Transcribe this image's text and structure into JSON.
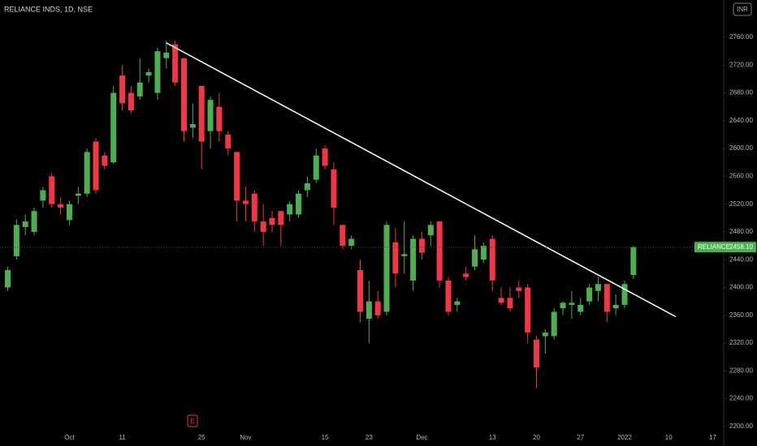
{
  "chart_data": {
    "type": "candlestick",
    "title": "RELIANCE INDS, 1D, NSE",
    "currency": "INR",
    "event_marker": "E",
    "up_color": "#4caf50",
    "down_color": "#f23645",
    "categories": [
      null,
      null,
      null,
      null,
      null,
      null,
      null,
      "Oct",
      null,
      null,
      null,
      null,
      null,
      "11",
      null,
      null,
      null,
      null,
      null,
      null,
      null,
      null,
      "25",
      null,
      null,
      null,
      null,
      "Nov",
      null,
      null,
      null,
      null,
      null,
      null,
      null,
      null,
      "15",
      null,
      null,
      null,
      null,
      "23",
      null,
      null,
      null,
      null,
      null,
      "Dec",
      null,
      null,
      null,
      null,
      null,
      null,
      null,
      "13",
      null,
      null,
      null,
      null,
      "20",
      null,
      null,
      null,
      null,
      "27",
      null,
      null,
      null,
      null,
      "2022",
      null,
      null,
      null,
      null,
      "10",
      null,
      null,
      null,
      null,
      "17"
    ],
    "open": [
      2400,
      2445,
      2487,
      2480,
      2525,
      2560,
      2520,
      2497,
      2532,
      2535,
      2610,
      2590,
      2580,
      2705,
      2680,
      2675,
      2705,
      2680,
      2730,
      2750,
      2730,
      2630,
      2690,
      2625,
      2660,
      2620,
      2595,
      2525,
      2535,
      2495,
      2500,
      2510,
      2505,
      2505,
      2540,
      2555,
      2600,
      2570,
      2490,
      2460,
      2425,
      2355,
      2380,
      2365,
      2465,
      2445,
      2410,
      2470,
      2475,
      2495,
      2410,
      2375,
      2420,
      2430,
      2440,
      2470,
      2385,
      2385,
      2400,
      2400,
      2325,
      2330,
      2330,
      2370,
      2375,
      2365,
      2380,
      2395,
      2405,
      2370,
      2375,
      2418,
      null,
      null,
      null,
      null,
      null,
      null,
      null,
      null,
      null
    ],
    "high": [
      2430,
      2498,
      2505,
      2515,
      2545,
      2565,
      2530,
      2525,
      2545,
      2600,
      2615,
      2595,
      2690,
      2720,
      2690,
      2730,
      2715,
      2745,
      2755,
      2755,
      2730,
      2665,
      2690,
      2675,
      2680,
      2625,
      2595,
      2545,
      2540,
      2520,
      2510,
      2510,
      2525,
      2540,
      2560,
      2600,
      2605,
      2580,
      2490,
      2475,
      2440,
      2410,
      2395,
      2495,
      2485,
      2495,
      2475,
      2480,
      2495,
      2495,
      2415,
      2385,
      2430,
      2475,
      2465,
      2475,
      2400,
      2400,
      2410,
      2405,
      2330,
      2340,
      2370,
      2380,
      2395,
      2385,
      2405,
      2415,
      2405,
      2390,
      2410,
      2460,
      null,
      null,
      null,
      null,
      null,
      null,
      null,
      null,
      null
    ],
    "low": [
      2395,
      2440,
      2475,
      2475,
      2515,
      2515,
      2505,
      2490,
      2520,
      2530,
      2535,
      2570,
      2578,
      2655,
      2650,
      2670,
      2695,
      2670,
      2715,
      2690,
      2610,
      2615,
      2570,
      2600,
      2610,
      2590,
      2495,
      2495,
      2480,
      2460,
      2480,
      2460,
      2495,
      2500,
      2530,
      2550,
      2570,
      2490,
      2455,
      2455,
      2350,
      2320,
      2355,
      2360,
      2400,
      2420,
      2395,
      2440,
      2460,
      2400,
      2360,
      2365,
      2410,
      2425,
      2435,
      2395,
      2375,
      2365,
      2385,
      2320,
      2255,
      2305,
      2325,
      2360,
      2355,
      2360,
      2375,
      2380,
      2350,
      2360,
      2370,
      2412,
      null,
      null,
      null,
      null,
      null,
      null,
      null,
      null,
      null
    ],
    "close": [
      2425,
      2490,
      2495,
      2510,
      2540,
      2520,
      2515,
      2520,
      2535,
      2595,
      2540,
      2575,
      2680,
      2665,
      2655,
      2695,
      2710,
      2740,
      2738,
      2695,
      2625,
      2635,
      2610,
      2670,
      2625,
      2600,
      2525,
      2520,
      2495,
      2480,
      2490,
      2490,
      2520,
      2535,
      2550,
      2590,
      2575,
      2515,
      2460,
      2470,
      2365,
      2380,
      2360,
      2490,
      2420,
      2448,
      2470,
      2450,
      2490,
      2410,
      2365,
      2380,
      2415,
      2455,
      2460,
      2410,
      2378,
      2370,
      2395,
      2335,
      2285,
      2335,
      2365,
      2378,
      2378,
      2375,
      2400,
      2405,
      2365,
      2375,
      2405,
      2458.1,
      null,
      null,
      null,
      null,
      null,
      null,
      null,
      null,
      null
    ],
    "ylim": [
      2188.2,
      2813.7
    ],
    "yticks": [
      {
        "value": 2200,
        "label": "2200.00"
      },
      {
        "value": 2240,
        "label": "2240.00"
      },
      {
        "value": 2280,
        "label": "2280.00"
      },
      {
        "value": 2320,
        "label": "2320.00"
      },
      {
        "value": 2360,
        "label": "2360.00"
      },
      {
        "value": 2400,
        "label": "2400.00"
      },
      {
        "value": 2440,
        "label": "2440.00"
      },
      {
        "value": 2480,
        "label": "2480.00"
      },
      {
        "value": 2520,
        "label": "2520.00"
      },
      {
        "value": 2560,
        "label": "2560.00"
      },
      {
        "value": 2600,
        "label": "2600.00"
      },
      {
        "value": 2640,
        "label": "2640.00"
      },
      {
        "value": 2680,
        "label": "2680.00"
      },
      {
        "value": 2720,
        "label": "2720.00"
      },
      {
        "value": 2760,
        "label": "2760.00"
      }
    ],
    "last_price": {
      "name": "RELIANCE",
      "value": 2458.1,
      "label": "2458.10"
    },
    "trendline": {
      "x": [
        18,
        75.8
      ],
      "y": [
        2752,
        2358
      ],
      "color": "#ffffff"
    }
  }
}
